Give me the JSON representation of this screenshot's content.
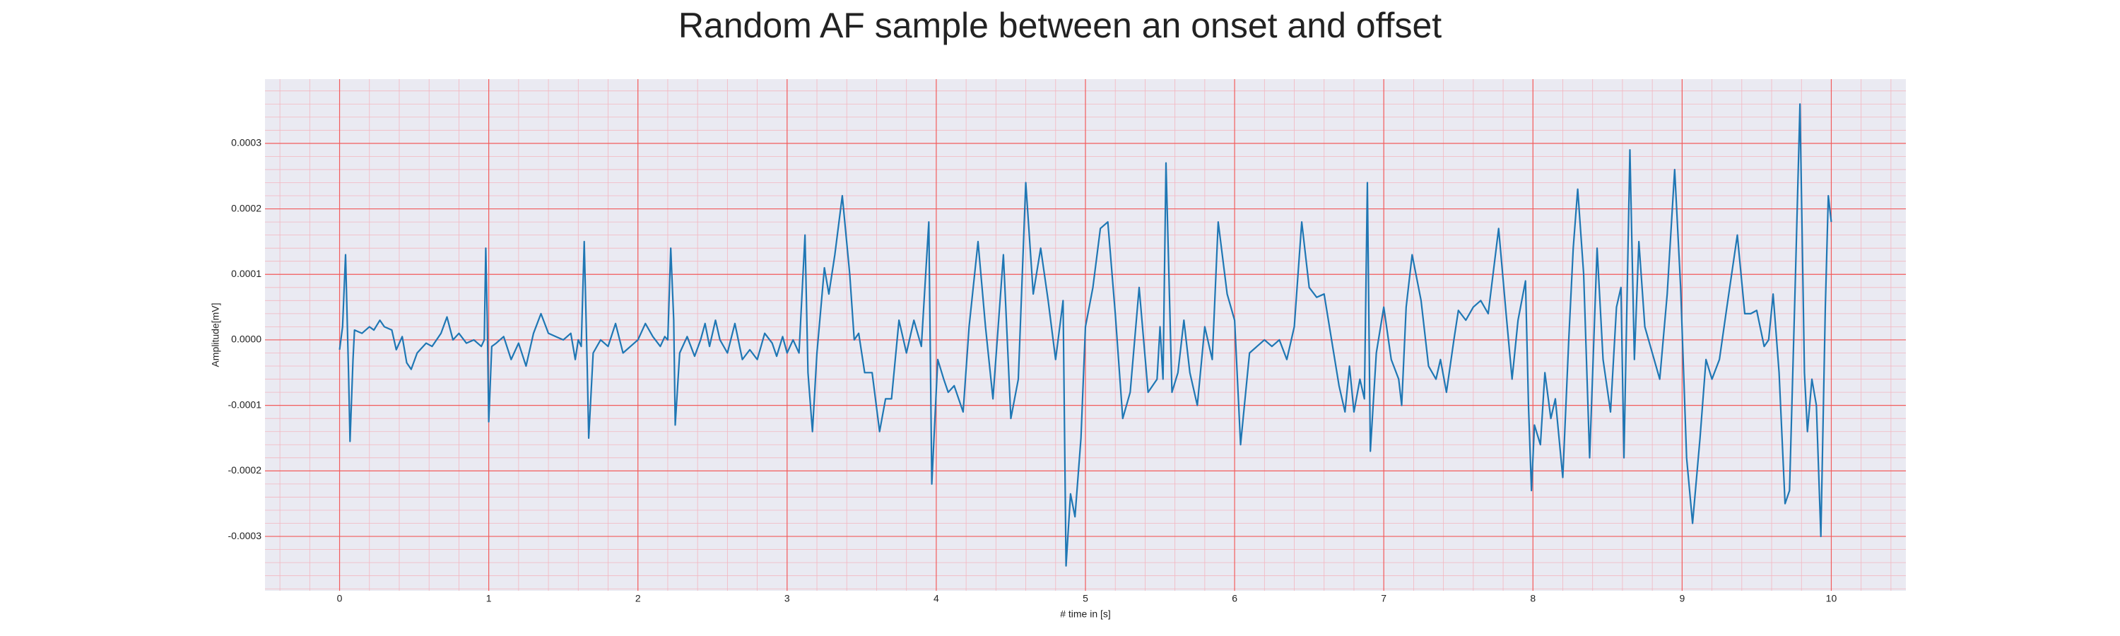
{
  "chart_data": {
    "type": "line",
    "title": "Random AF sample between an onset and offset",
    "xlabel": "# time in [s]",
    "ylabel": "Amplitude[mV]",
    "color": "#1f77b4",
    "grid": true,
    "minor_grid": true,
    "xlim": [
      -0.5,
      10.5
    ],
    "ylim": [
      -0.000383,
      0.000398
    ],
    "xticks": [
      0,
      1,
      2,
      3,
      4,
      5,
      6,
      7,
      8,
      9,
      10
    ],
    "yticks": [
      -0.0003,
      -0.0002,
      -0.0001,
      {
        "value": 0,
        "label": "0.0000"
      },
      0.0001,
      0.0002,
      0.0003
    ],
    "x": [
      0,
      0.02,
      0.04,
      0.06,
      0.07,
      0.09,
      0.1,
      0.15,
      0.2,
      0.23,
      0.27,
      0.3,
      0.35,
      0.38,
      0.42,
      0.45,
      0.48,
      0.52,
      0.58,
      0.62,
      0.68,
      0.72,
      0.76,
      0.8,
      0.85,
      0.9,
      0.95,
      0.97,
      0.98,
      0.99,
      1,
      1.02,
      1.05,
      1.1,
      1.15,
      1.2,
      1.25,
      1.3,
      1.35,
      1.4,
      1.45,
      1.5,
      1.55,
      1.58,
      1.6,
      1.62,
      1.64,
      1.66,
      1.67,
      1.7,
      1.75,
      1.8,
      1.85,
      1.9,
      1.95,
      2,
      2.05,
      2.1,
      2.15,
      2.18,
      2.2,
      2.22,
      2.24,
      2.25,
      2.28,
      2.33,
      2.38,
      2.42,
      2.45,
      2.48,
      2.52,
      2.55,
      2.6,
      2.65,
      2.7,
      2.75,
      2.8,
      2.85,
      2.9,
      2.93,
      2.97,
      3,
      3.04,
      3.08,
      3.12,
      3.14,
      3.17,
      3.2,
      3.25,
      3.28,
      3.32,
      3.37,
      3.42,
      3.45,
      3.48,
      3.52,
      3.57,
      3.62,
      3.66,
      3.7,
      3.75,
      3.8,
      3.85,
      3.9,
      3.95,
      3.97,
      4.01,
      4.05,
      4.08,
      4.12,
      4.15,
      4.18,
      4.22,
      4.28,
      4.33,
      4.38,
      4.45,
      4.5,
      4.55,
      4.6,
      4.65,
      4.7,
      4.75,
      4.8,
      4.85,
      4.87,
      4.9,
      4.93,
      4.97,
      5,
      5.05,
      5.1,
      5.15,
      5.2,
      5.25,
      5.3,
      5.36,
      5.42,
      5.48,
      5.5,
      5.52,
      5.54,
      5.58,
      5.62,
      5.66,
      5.7,
      5.75,
      5.8,
      5.85,
      5.89,
      5.95,
      6,
      6.04,
      6.1,
      6.15,
      6.2,
      6.25,
      6.3,
      6.35,
      6.4,
      6.45,
      6.5,
      6.55,
      6.6,
      6.65,
      6.7,
      6.74,
      6.77,
      6.8,
      6.84,
      6.87,
      6.89,
      6.91,
      6.95,
      7,
      7.05,
      7.1,
      7.12,
      7.15,
      7.19,
      7.25,
      7.3,
      7.35,
      7.38,
      7.42,
      7.47,
      7.5,
      7.55,
      7.6,
      7.65,
      7.7,
      7.77,
      7.82,
      7.86,
      7.9,
      7.95,
      7.97,
      7.99,
      8.01,
      8.05,
      8.08,
      8.12,
      8.15,
      8.2,
      8.24,
      8.27,
      8.3,
      8.34,
      8.38,
      8.43,
      8.47,
      8.52,
      8.56,
      8.59,
      8.61,
      8.65,
      8.68,
      8.71,
      8.75,
      8.8,
      8.85,
      8.9,
      8.95,
      8.99,
      9.03,
      9.07,
      9.12,
      9.16,
      9.2,
      9.25,
      9.3,
      9.37,
      9.42,
      9.46,
      9.5,
      9.55,
      9.58,
      9.61,
      9.65,
      9.69,
      9.72,
      9.76,
      9.79,
      9.82,
      9.84,
      9.87,
      9.9,
      9.93,
      9.96,
      9.98,
      10
    ],
    "values": [
      -1.5e-05,
      2e-05,
      0.00013,
      -5e-05,
      -0.000155,
      -3e-05,
      1.5e-05,
      1e-05,
      2e-05,
      1.5e-05,
      3e-05,
      2e-05,
      1.5e-05,
      -1.5e-05,
      5e-06,
      -3.5e-05,
      -4.5e-05,
      -2e-05,
      -5e-06,
      -1e-05,
      1e-05,
      3.5e-05,
      0,
      1e-05,
      -5e-06,
      0,
      -1e-05,
      0,
      0.00014,
      3e-05,
      -0.000125,
      -1e-05,
      -5e-06,
      5e-06,
      -3e-05,
      -5e-06,
      -4e-05,
      1e-05,
      4e-05,
      1e-05,
      5e-06,
      0,
      1e-05,
      -3e-05,
      0,
      -1e-05,
      0.00015,
      -4e-05,
      -0.00015,
      -2e-05,
      0,
      -1e-05,
      2.5e-05,
      -2e-05,
      -1e-05,
      0,
      2.5e-05,
      5e-06,
      -1e-05,
      5e-06,
      0,
      0.00014,
      3e-05,
      -0.00013,
      -2e-05,
      5e-06,
      -2.5e-05,
      0,
      2.5e-05,
      -1e-05,
      3e-05,
      0,
      -2e-05,
      2.5e-05,
      -3e-05,
      -1.5e-05,
      -3e-05,
      1e-05,
      -5e-06,
      -2.5e-05,
      5e-06,
      -2e-05,
      0,
      -2e-05,
      0.00016,
      -5e-05,
      -0.00014,
      -2e-05,
      0.00011,
      7e-05,
      0.00013,
      0.00022,
      0.0001,
      0,
      1e-05,
      -5e-05,
      -5e-05,
      -0.00014,
      -9e-05,
      -9e-05,
      3e-05,
      -2e-05,
      3e-05,
      -1e-05,
      0.00018,
      -0.00022,
      -3e-05,
      -6e-05,
      -8e-05,
      -7e-05,
      -9e-05,
      -0.00011,
      2e-05,
      0.00015,
      2e-05,
      -9e-05,
      0.00013,
      -0.00012,
      -6e-05,
      0.00024,
      7e-05,
      0.00014,
      6e-05,
      -3e-05,
      6e-05,
      -0.000345,
      -0.000235,
      -0.00027,
      -0.00015,
      2e-05,
      8e-05,
      0.00017,
      0.00018,
      4e-05,
      -0.00012,
      -8e-05,
      8e-05,
      -8e-05,
      -6e-05,
      2e-05,
      -6e-05,
      0.00027,
      -8e-05,
      -5e-05,
      3e-05,
      -5e-05,
      -0.0001,
      2e-05,
      -3e-05,
      0.00018,
      7e-05,
      3e-05,
      -0.00016,
      -2e-05,
      -1e-05,
      0,
      -1e-05,
      0,
      -3e-05,
      2e-05,
      0.00018,
      8e-05,
      6.5e-05,
      7e-05,
      0,
      -7e-05,
      -0.00011,
      -4e-05,
      -0.00011,
      -6e-05,
      -9e-05,
      0.00024,
      -0.00017,
      -2e-05,
      5e-05,
      -3e-05,
      -6e-05,
      -0.0001,
      5e-05,
      0.00013,
      6e-05,
      -4e-05,
      -6e-05,
      -3e-05,
      -8e-05,
      0,
      4.5e-05,
      3e-05,
      5e-05,
      6e-05,
      4e-05,
      0.00017,
      4e-05,
      -6e-05,
      3e-05,
      9e-05,
      -0.0001,
      -0.00023,
      -0.00013,
      -0.00016,
      -5e-05,
      -0.00012,
      -9e-05,
      -0.00021,
      0,
      0.00014,
      0.00023,
      0.0001,
      -0.00018,
      0.00014,
      -3e-05,
      -0.00011,
      5e-05,
      8e-05,
      -0.00018,
      0.00029,
      -3e-05,
      0.00015,
      2e-05,
      -2e-05,
      -6e-05,
      7e-05,
      0.00026,
      8e-05,
      -0.00018,
      -0.00028,
      -0.00015,
      -3e-05,
      -6e-05,
      -3e-05,
      5e-05,
      0.00016,
      4e-05,
      4e-05,
      4.5e-05,
      -1e-05,
      0,
      7e-05,
      -5e-05,
      -0.00025,
      -0.00023,
      0.0001,
      0.00036,
      -5e-05,
      -0.00014,
      -6e-05,
      -0.0001,
      -0.0003,
      5e-05,
      0.00022,
      0.00018
    ]
  }
}
